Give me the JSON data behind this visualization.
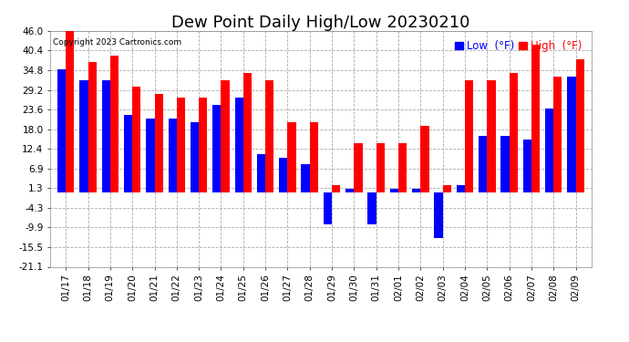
{
  "title": "Dew Point Daily High/Low 20230210",
  "copyright": "Copyright 2023 Cartronics.com",
  "legend_low_label": "Low  (°F)",
  "legend_high_label": "High  (°F)",
  "dates": [
    "01/17",
    "01/18",
    "01/19",
    "01/20",
    "01/21",
    "01/22",
    "01/23",
    "01/24",
    "01/25",
    "01/26",
    "01/27",
    "01/28",
    "01/29",
    "01/30",
    "01/31",
    "02/01",
    "02/02",
    "02/03",
    "02/04",
    "02/05",
    "02/06",
    "02/07",
    "02/08",
    "02/09"
  ],
  "high_values": [
    46.0,
    37.0,
    39.0,
    30.0,
    28.0,
    27.0,
    27.0,
    32.0,
    34.0,
    32.0,
    20.0,
    20.0,
    2.0,
    14.0,
    14.0,
    14.0,
    19.0,
    2.0,
    32.0,
    32.0,
    34.0,
    42.0,
    33.0,
    38.0
  ],
  "low_values": [
    35.0,
    32.0,
    32.0,
    22.0,
    21.0,
    21.0,
    20.0,
    25.0,
    27.0,
    11.0,
    10.0,
    8.0,
    -9.0,
    1.0,
    -9.0,
    1.0,
    1.0,
    -13.0,
    2.0,
    16.0,
    16.0,
    15.0,
    24.0,
    33.0
  ],
  "high_color": "#ff0000",
  "low_color": "#0000ff",
  "background_color": "#ffffff",
  "grid_color": "#aaaaaa",
  "ylim": [
    -21.1,
    46.0
  ],
  "yticks": [
    46.0,
    40.4,
    34.8,
    29.2,
    23.6,
    18.0,
    12.4,
    6.9,
    1.3,
    -4.3,
    -9.9,
    -15.5,
    -21.1
  ],
  "title_fontsize": 13,
  "tick_fontsize": 7.5,
  "bar_width": 0.38
}
